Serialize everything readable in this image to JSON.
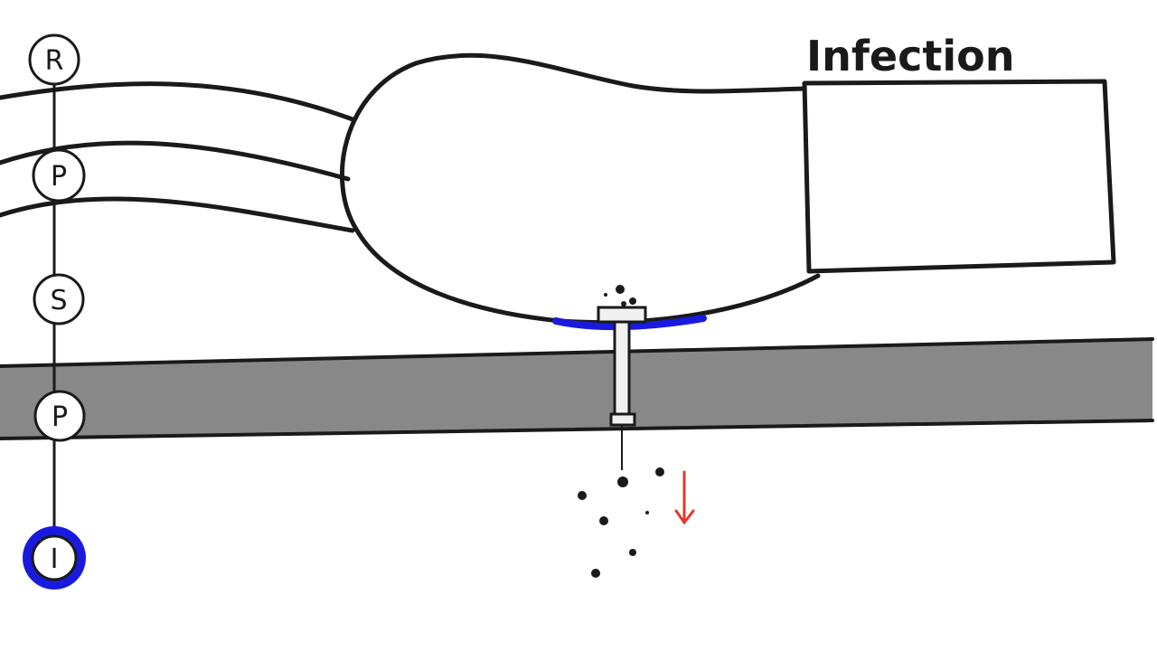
{
  "timeline": {
    "nodes": [
      {
        "letter": "R"
      },
      {
        "letter": "P"
      },
      {
        "letter": "S"
      },
      {
        "letter": "P"
      },
      {
        "letter": "I"
      }
    ],
    "active_index": 4
  },
  "labels": {
    "box_label": "Infection"
  },
  "colors": {
    "ink": "#1a1a1a",
    "membrane": "#888888",
    "highlight": "#1a1adf",
    "arrow": "#e03a2a",
    "background": "#ffffff"
  },
  "icons": {
    "arrow": "down-arrow-icon"
  }
}
